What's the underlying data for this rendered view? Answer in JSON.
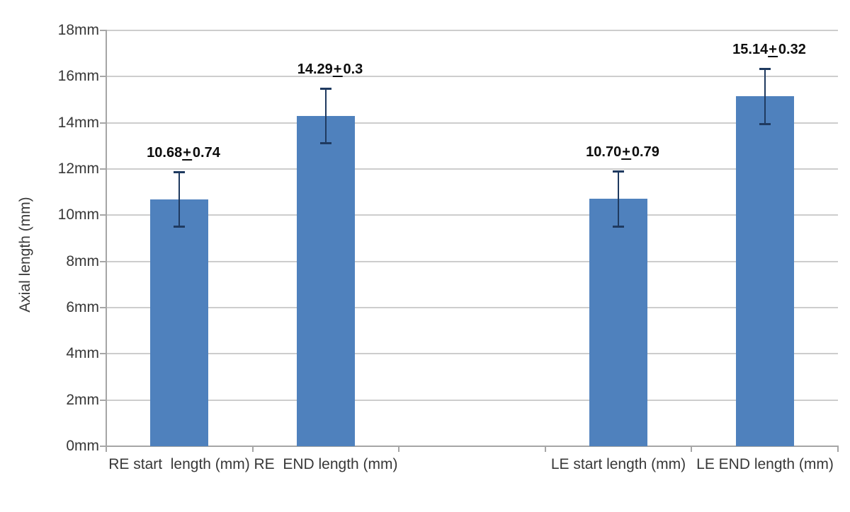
{
  "chart_data": {
    "type": "bar",
    "title": "",
    "xlabel": "",
    "ylabel": "Axial length (mm)",
    "ylim": [
      0,
      18
    ],
    "ytick_step": 2,
    "ytick_unit": "mm",
    "ytick_labels": [
      "0mm",
      "2mm",
      "4mm",
      "6mm",
      "8mm",
      "10mm",
      "12mm",
      "14mm",
      "16mm",
      "18mm"
    ],
    "categories": [
      "RE start  length (mm)",
      "RE  END length (mm)",
      "",
      "LE start length (mm)",
      "LE END length (mm)"
    ],
    "values": [
      10.68,
      14.29,
      null,
      10.7,
      15.14
    ],
    "errors": [
      0.74,
      0.3,
      null,
      0.79,
      0.32
    ],
    "data_labels": [
      {
        "value": "10.68",
        "pm": "+",
        "error": "0.74"
      },
      {
        "value": "14.29",
        "pm": "+",
        "error": "0.3"
      },
      null,
      {
        "value": "10.70",
        "pm": "+",
        "error": "0.79"
      },
      {
        "value": "15.14",
        "pm": "+",
        "error": "0.32"
      }
    ],
    "legend": "none",
    "grid": true,
    "background": "#ffffff",
    "bar_color": "#4f81bd",
    "error_bar_color": "#1f3a60",
    "gridline_color": "#cdcdcd",
    "axis_color": "#a6a6a6",
    "drawn_whisker_half_mm": 1.2
  }
}
